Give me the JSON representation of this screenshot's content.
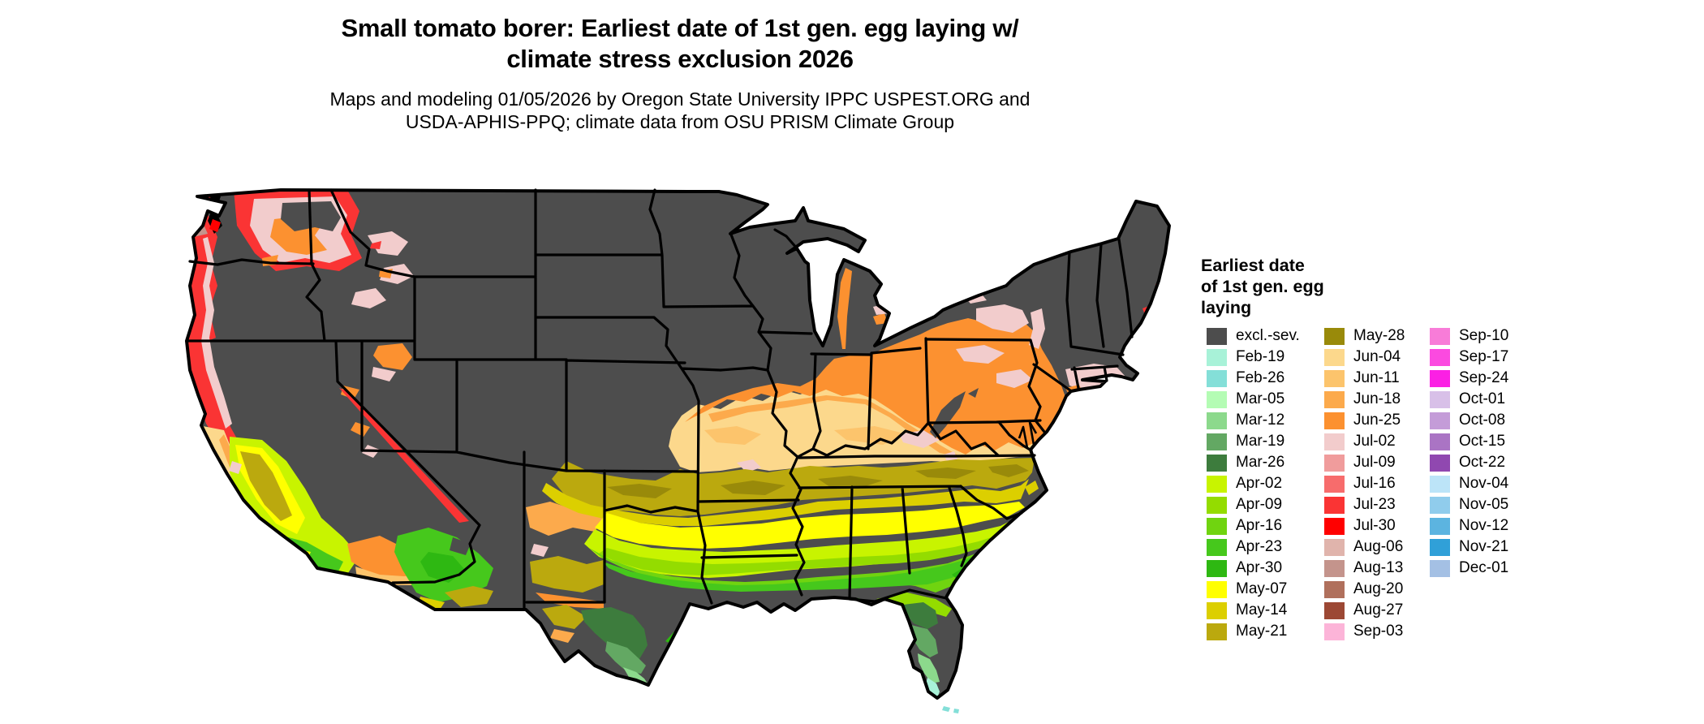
{
  "header": {
    "title_line1": "Small tomato borer: Earliest date of 1st gen. egg laying w/",
    "title_line2": "climate stress exclusion 2026",
    "subtitle_line1": "Maps and modeling 01/05/2026 by Oregon State University IPPC USPEST.ORG and",
    "subtitle_line2": "USDA-APHIS-PPQ; climate data from OSU PRISM Climate Group"
  },
  "legend": {
    "title_lines": [
      "Earliest date",
      "of 1st gen. egg",
      "laying"
    ],
    "column_offsets": [
      7,
      152,
      282
    ],
    "columns": [
      [
        {
          "label": "excl.-sev.",
          "color": "#4d4d4d"
        },
        {
          "label": "Feb-19",
          "color": "#a8f2d8"
        },
        {
          "label": "Feb-26",
          "color": "#84dfd8"
        },
        {
          "label": "Mar-05",
          "color": "#b4fcb4"
        },
        {
          "label": "Mar-12",
          "color": "#8cd98c"
        },
        {
          "label": "Mar-19",
          "color": "#63a863"
        },
        {
          "label": "Mar-26",
          "color": "#3d7c3d"
        },
        {
          "label": "Apr-02",
          "color": "#c8f400"
        },
        {
          "label": "Apr-09",
          "color": "#94dc00"
        },
        {
          "label": "Apr-16",
          "color": "#70d410"
        },
        {
          "label": "Apr-23",
          "color": "#46c81c"
        },
        {
          "label": "Apr-30",
          "color": "#2eb812"
        },
        {
          "label": "May-07",
          "color": "#ffff00"
        },
        {
          "label": "May-14",
          "color": "#dccf00"
        },
        {
          "label": "May-21",
          "color": "#bba90e"
        }
      ],
      [
        {
          "label": "May-28",
          "color": "#998a0a"
        },
        {
          "label": "Jun-04",
          "color": "#fcd88c"
        },
        {
          "label": "Jun-11",
          "color": "#fcc46c"
        },
        {
          "label": "Jun-18",
          "color": "#fcaa4c"
        },
        {
          "label": "Jun-25",
          "color": "#fc9130"
        },
        {
          "label": "Jul-02",
          "color": "#f2cccc"
        },
        {
          "label": "Jul-09",
          "color": "#f09c9c"
        },
        {
          "label": "Jul-16",
          "color": "#f76c6c"
        },
        {
          "label": "Jul-23",
          "color": "#fa3434"
        },
        {
          "label": "Jul-30",
          "color": "#ff0000"
        },
        {
          "label": "Aug-06",
          "color": "#e0b4ac"
        },
        {
          "label": "Aug-13",
          "color": "#c4948c"
        },
        {
          "label": "Aug-20",
          "color": "#b0705c"
        },
        {
          "label": "Aug-27",
          "color": "#9c4834"
        },
        {
          "label": "Sep-03",
          "color": "#fcb4d8"
        }
      ],
      [
        {
          "label": "Sep-10",
          "color": "#f87cd8"
        },
        {
          "label": "Sep-17",
          "color": "#fb4ae0"
        },
        {
          "label": "Sep-24",
          "color": "#fb20e4"
        },
        {
          "label": "Oct-01",
          "color": "#d8c0e8"
        },
        {
          "label": "Oct-08",
          "color": "#c49cd8"
        },
        {
          "label": "Oct-15",
          "color": "#aa74c4"
        },
        {
          "label": "Oct-22",
          "color": "#9048b0"
        },
        {
          "label": "Nov-04",
          "color": "#bce4f8"
        },
        {
          "label": "Nov-05",
          "color": "#90ccec"
        },
        {
          "label": "Nov-12",
          "color": "#5cb4e0"
        },
        {
          "label": "Nov-21",
          "color": "#30a0d8"
        },
        {
          "label": "Dec-01",
          "color": "#a4c0e4"
        }
      ]
    ]
  },
  "map": {
    "type": "choropleth",
    "region": "Continental United States",
    "value_shown": "Earliest date of 1st gen. egg laying",
    "base_class": "excl.-sev.",
    "background_color": "#ffffff",
    "state_border_color": "#000000",
    "water_color": "#000000"
  }
}
